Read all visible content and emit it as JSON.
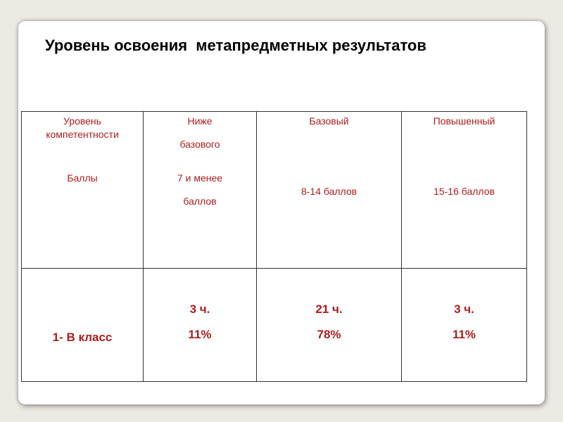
{
  "title": "Уровень освоения  метапредметных результатов",
  "header": {
    "col1_line1": "Уровень",
    "col1_line2": "компетентности",
    "col1_points": "Баллы",
    "col2_line1": "Ниже",
    "col2_line2": "базового",
    "col2_points_line1": "7 и менее",
    "col2_points_line2": "баллов",
    "col3_level": "Базовый",
    "col3_points": "8-14 баллов",
    "col4_level": "Повышенный",
    "col4_points": "15-16 баллов"
  },
  "row": {
    "class_label": "1- В   класс",
    "below_count": "3 ч.",
    "below_percent": "11%",
    "base_count": "21 ч.",
    "base_percent": "78%",
    "high_count": "3 ч.",
    "high_percent": "11%"
  }
}
